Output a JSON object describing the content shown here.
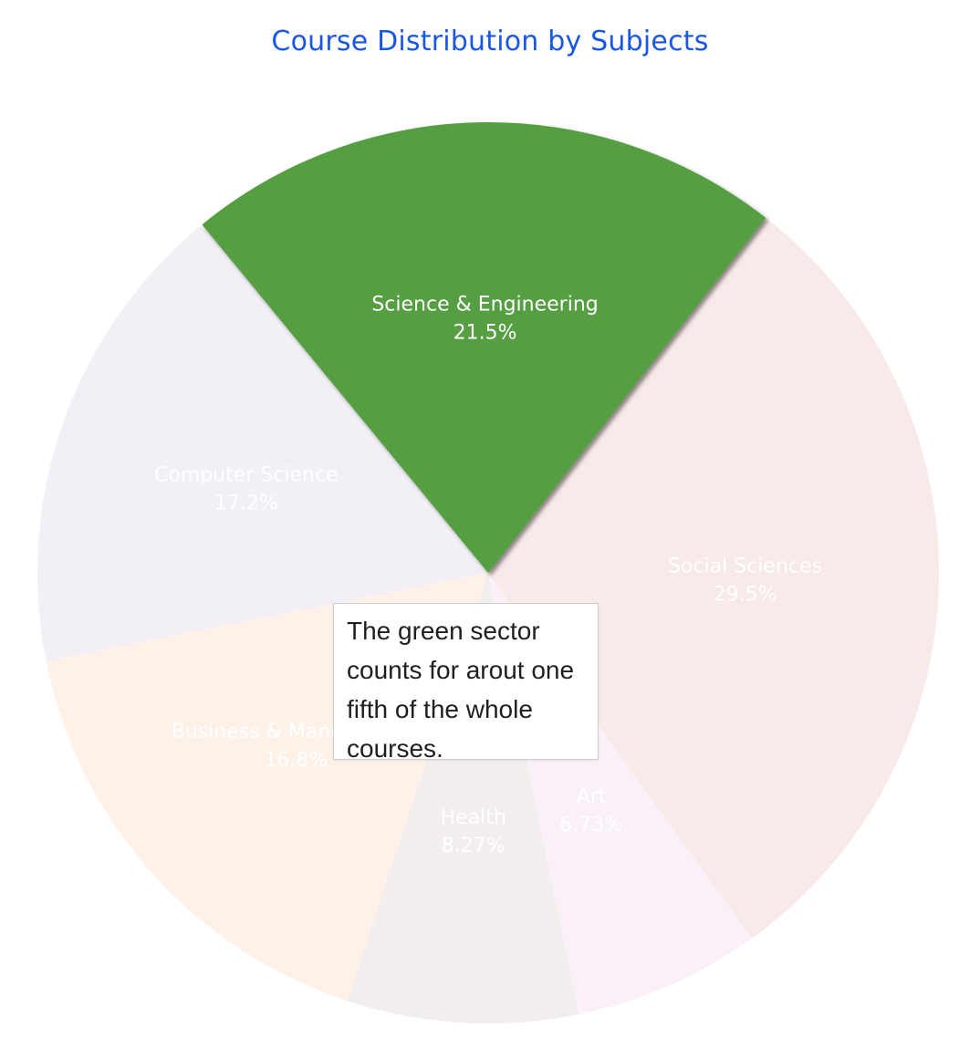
{
  "chart_data": {
    "type": "pie",
    "title": "Course Distribution by Subjects",
    "highlighted": "Science & Engineering",
    "slices": [
      {
        "label": "Science & Engineering",
        "value": 21.5,
        "percent_text": "21.5%",
        "color": "#559e42",
        "faded_color": "#559e42"
      },
      {
        "label": "Social Sciences",
        "value": 29.5,
        "percent_text": "29.5%",
        "color": "#e06c5c",
        "faded_color": "#f8eae8"
      },
      {
        "label": "Art",
        "value": 6.73,
        "percent_text": "6.73%",
        "color": "#d48ecf",
        "faded_color": "#faf0f8"
      },
      {
        "label": "Health",
        "value": 8.27,
        "percent_text": "8.27%",
        "color": "#b39a93",
        "faded_color": "#f2eeed"
      },
      {
        "label": "Business & Management",
        "value": 16.8,
        "percent_text": "16.8%",
        "color": "#f2b27a",
        "faded_color": "#fdf1e8"
      },
      {
        "label": "Computer Science",
        "value": 17.2,
        "percent_text": "17.2%",
        "color": "#a99cc9",
        "faded_color": "#f2eff6"
      }
    ],
    "annotation": "The green sector counts for arout one fifth of the whole courses."
  }
}
